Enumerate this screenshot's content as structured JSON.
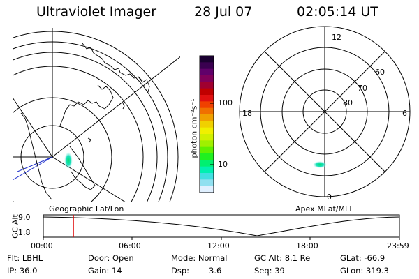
{
  "header": {
    "instrument": "Ultraviolet Imager",
    "date": "28 Jul 07",
    "time": "02:05:14 UT"
  },
  "colorbar": {
    "unit_label": "photon cm⁻²s⁻¹",
    "ticks": [
      "100",
      "10"
    ],
    "colors": [
      "#1a0030",
      "#3a0050",
      "#60006a",
      "#80005a",
      "#a00030",
      "#c00000",
      "#e01010",
      "#f04000",
      "#f07000",
      "#f0a000",
      "#f0d000",
      "#f0f000",
      "#d0f000",
      "#a0f000",
      "#60f000",
      "#20f020",
      "#00f070",
      "#00f0b0",
      "#40e0e0",
      "#90e0f0",
      "#e0f0ff"
    ]
  },
  "geo_panel": {
    "label": "Geographic Lat/Lon"
  },
  "polar_panel": {
    "label": "Apex MLat/MLT",
    "mlt_labels": {
      "top": "12",
      "left": "18",
      "right": "6",
      "bottom": "0"
    },
    "lat_labels": [
      "60",
      "70",
      "80"
    ]
  },
  "altitude_plot": {
    "ylabel": "GC Alt",
    "y_ticks": [
      "9.0",
      "1.8"
    ],
    "x_ticks": [
      "00:00",
      "06:00",
      "12:00",
      "18:00",
      "23:59"
    ]
  },
  "info": {
    "row1": {
      "filter": "Flt: LBHL",
      "door": "Door: Open",
      "mode": "Mode: Normal",
      "gc_alt": "GC Alt: 8.1 Re",
      "glat": "GLat: -66.9"
    },
    "row2": {
      "ip": "IP: 36.0",
      "gain": "Gain: 14",
      "dsp_label": "Dsp:",
      "dsp_value": "3.6",
      "seq": "Seq: 39",
      "glon": "GLon: 319.3"
    }
  }
}
